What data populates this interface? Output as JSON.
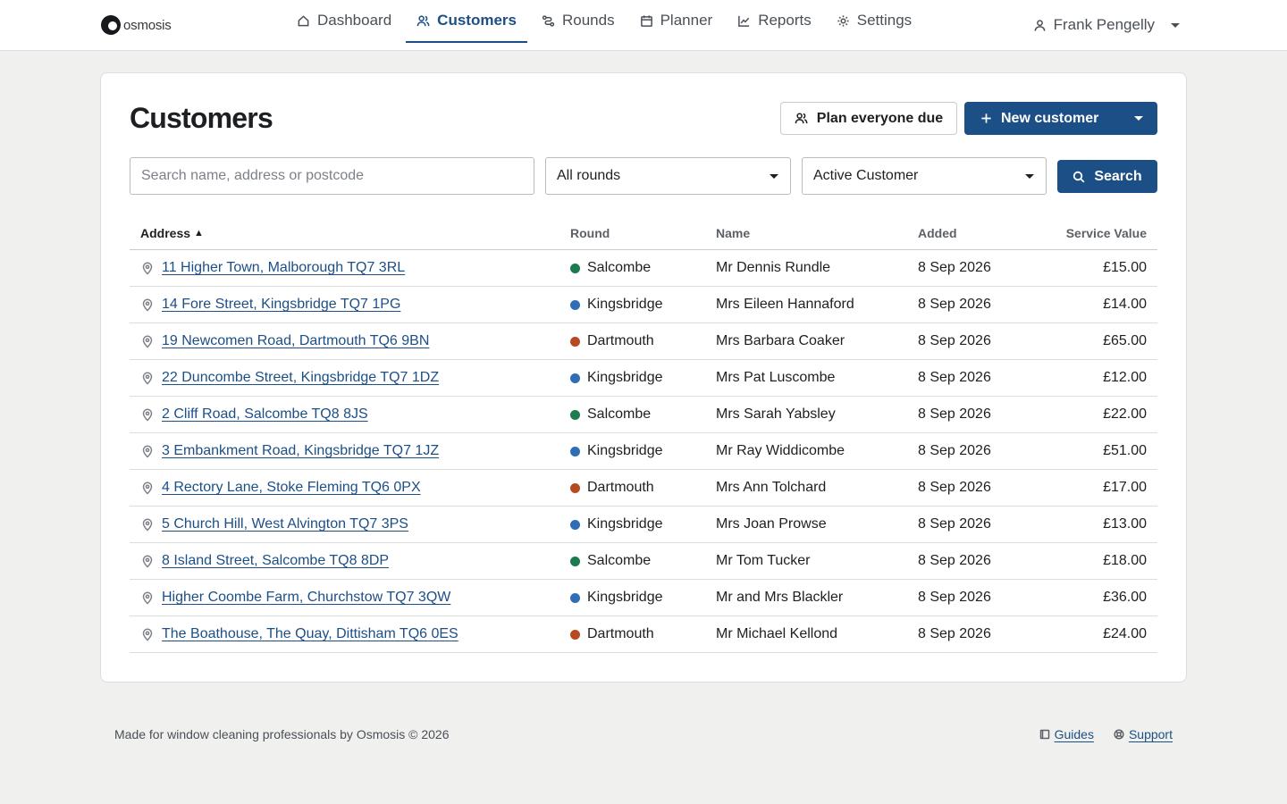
{
  "brand": {
    "name": "osmosis"
  },
  "nav": {
    "items": [
      {
        "label": "Dashboard",
        "icon": "home-icon"
      },
      {
        "label": "Customers",
        "icon": "users-icon",
        "active": true
      },
      {
        "label": "Rounds",
        "icon": "route-icon"
      },
      {
        "label": "Planner",
        "icon": "calendar-icon"
      },
      {
        "label": "Reports",
        "icon": "chart-icon"
      },
      {
        "label": "Settings",
        "icon": "gear-icon"
      }
    ],
    "user": "Frank Pengelly"
  },
  "page": {
    "title": "Customers",
    "plan_button": "Plan everyone due",
    "new_button": "New customer"
  },
  "filters": {
    "search_placeholder": "Search name, address or postcode",
    "search_value": "",
    "round": "All rounds",
    "status": "Active Customer",
    "search_button": "Search"
  },
  "colors": {
    "accent": "#1c4f86",
    "round_salcombe": "#1e7a4f",
    "round_kingsbridge": "#2f6db5",
    "round_dartmouth": "#b84a22"
  },
  "table": {
    "headers": {
      "address": "Address",
      "sort_indicator": "▲",
      "round": "Round",
      "name": "Name",
      "added": "Added",
      "value": "Service Value"
    },
    "rows": [
      {
        "address": "11 Higher Town, Malborough TQ7 3RL",
        "round": "Salcombe",
        "round_color": "#1e7a4f",
        "name": "Mr Dennis Rundle",
        "added": "8 Sep 2026",
        "value": "£15.00"
      },
      {
        "address": "14 Fore Street, Kingsbridge TQ7 1PG",
        "round": "Kingsbridge",
        "round_color": "#2f6db5",
        "name": "Mrs Eileen Hannaford",
        "added": "8 Sep 2026",
        "value": "£14.00"
      },
      {
        "address": "19 Newcomen Road, Dartmouth TQ6 9BN",
        "round": "Dartmouth",
        "round_color": "#b84a22",
        "name": "Mrs Barbara Coaker",
        "added": "8 Sep 2026",
        "value": "£65.00"
      },
      {
        "address": "22 Duncombe Street, Kingsbridge TQ7 1DZ",
        "round": "Kingsbridge",
        "round_color": "#2f6db5",
        "name": "Mrs Pat Luscombe",
        "added": "8 Sep 2026",
        "value": "£12.00"
      },
      {
        "address": "2 Cliff Road, Salcombe TQ8 8JS",
        "round": "Salcombe",
        "round_color": "#1e7a4f",
        "name": "Mrs Sarah Yabsley",
        "added": "8 Sep 2026",
        "value": "£22.00"
      },
      {
        "address": "3 Embankment Road, Kingsbridge TQ7 1JZ",
        "round": "Kingsbridge",
        "round_color": "#2f6db5",
        "name": "Mr Ray Widdicombe",
        "added": "8 Sep 2026",
        "value": "£51.00"
      },
      {
        "address": "4 Rectory Lane, Stoke Fleming TQ6 0PX",
        "round": "Dartmouth",
        "round_color": "#b84a22",
        "name": "Mrs Ann Tolchard",
        "added": "8 Sep 2026",
        "value": "£17.00"
      },
      {
        "address": "5 Church Hill, West Alvington TQ7 3PS",
        "round": "Kingsbridge",
        "round_color": "#2f6db5",
        "name": "Mrs Joan Prowse",
        "added": "8 Sep 2026",
        "value": "£13.00"
      },
      {
        "address": "8 Island Street, Salcombe TQ8 8DP",
        "round": "Salcombe",
        "round_color": "#1e7a4f",
        "name": "Mr Tom Tucker",
        "added": "8 Sep 2026",
        "value": "£18.00"
      },
      {
        "address": "Higher Coombe Farm, Churchstow TQ7 3QW",
        "round": "Kingsbridge",
        "round_color": "#2f6db5",
        "name": "Mr and Mrs Blackler",
        "added": "8 Sep 2026",
        "value": "£36.00"
      },
      {
        "address": "The Boathouse, The Quay, Dittisham TQ6 0ES",
        "round": "Dartmouth",
        "round_color": "#b84a22",
        "name": "Mr Michael Kellond",
        "added": "8 Sep 2026",
        "value": "£24.00"
      }
    ]
  },
  "footer": {
    "text": "Made for window cleaning professionals by Osmosis © 2026",
    "guides": "Guides",
    "support": "Support"
  }
}
